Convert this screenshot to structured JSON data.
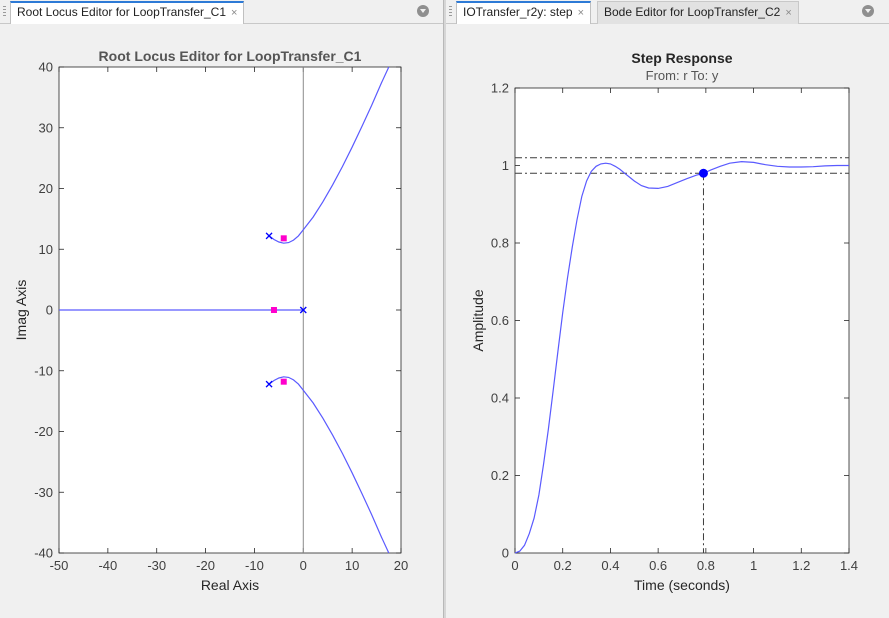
{
  "left_tabs": [
    {
      "label": "Root Locus Editor for LoopTransfer_C1",
      "active": true
    }
  ],
  "right_tabs": [
    {
      "label": "IOTransfer_r2y: step",
      "active": true
    },
    {
      "label": "Bode Editor for LoopTransfer_C2",
      "active": false
    }
  ],
  "close_glyph": "×",
  "icons": {
    "tab_close": "close-icon",
    "panel_menu": "panel-menu-icon",
    "grip": "drag-handle-icon"
  },
  "colors": {
    "curve": "#5a5aff",
    "closed_loop_pole": "#ff00cc",
    "open_loop_pole": "#0000ff",
    "step_marker": "#0000ff",
    "tab_accent": "#2d7ad6"
  },
  "chart_data": [
    {
      "type": "line",
      "name": "root-locus",
      "title": "Root Locus Editor for LoopTransfer_C1",
      "xlabel": "Real Axis",
      "ylabel": "Imag Axis",
      "xlim": [
        -50,
        20
      ],
      "ylim": [
        -40,
        40
      ],
      "xticks": [
        -50,
        -40,
        -30,
        -20,
        -10,
        0,
        10,
        20
      ],
      "yticks": [
        -40,
        -30,
        -20,
        -10,
        0,
        10,
        20,
        30,
        40
      ],
      "grid": false,
      "branches": [
        {
          "x": [
            -7,
            -6,
            -5,
            -4,
            -3,
            -2,
            -1,
            0,
            2,
            4,
            6,
            8,
            10,
            12,
            14,
            16,
            17.5
          ],
          "y": [
            12.2,
            11.6,
            11.2,
            11.0,
            11.1,
            11.5,
            12.2,
            13.2,
            15.3,
            17.8,
            20.6,
            23.6,
            26.8,
            30.2,
            33.7,
            37.4,
            40
          ]
        },
        {
          "x": [
            -7,
            -6,
            -5,
            -4,
            -3,
            -2,
            -1,
            0,
            2,
            4,
            6,
            8,
            10,
            12,
            14,
            16,
            17.5
          ],
          "y": [
            -12.2,
            -11.6,
            -11.2,
            -11.0,
            -11.1,
            -11.5,
            -12.2,
            -13.2,
            -15.3,
            -17.8,
            -20.6,
            -23.6,
            -26.8,
            -30.2,
            -33.7,
            -37.4,
            -40
          ]
        },
        {
          "x": [
            0,
            -50
          ],
          "y": [
            0,
            0
          ]
        }
      ],
      "open_loop_poles": [
        {
          "x": -7,
          "y": 12.2
        },
        {
          "x": -7,
          "y": -12.2
        },
        {
          "x": 0,
          "y": 0
        }
      ],
      "closed_loop_poles": [
        {
          "x": -4,
          "y": 11.8
        },
        {
          "x": -4,
          "y": -11.8
        },
        {
          "x": -6,
          "y": 0
        }
      ]
    },
    {
      "type": "line",
      "name": "step-response",
      "title": "Step Response",
      "subtitle": "From: r  To: y",
      "xlabel": "Time (seconds)",
      "ylabel": "Amplitude",
      "xlim": [
        0,
        1.4
      ],
      "ylim": [
        0,
        1.2
      ],
      "xticks": [
        0,
        0.2,
        0.4,
        0.6,
        0.8,
        1,
        1.2,
        1.4
      ],
      "yticks": [
        0,
        0.2,
        0.4,
        0.6,
        0.8,
        1,
        1.2
      ],
      "grid": false,
      "series": [
        {
          "x": [
            0,
            0.02,
            0.04,
            0.06,
            0.08,
            0.1,
            0.12,
            0.14,
            0.16,
            0.18,
            0.2,
            0.22,
            0.24,
            0.26,
            0.28,
            0.3,
            0.32,
            0.34,
            0.36,
            0.38,
            0.4,
            0.42,
            0.44,
            0.46,
            0.48,
            0.5,
            0.53,
            0.56,
            0.6,
            0.64,
            0.68,
            0.72,
            0.76,
            0.79,
            0.82,
            0.86,
            0.9,
            0.95,
            1.0,
            1.05,
            1.1,
            1.15,
            1.2,
            1.25,
            1.3,
            1.35,
            1.4
          ],
          "y": [
            0,
            0.005,
            0.02,
            0.05,
            0.09,
            0.15,
            0.23,
            0.32,
            0.42,
            0.52,
            0.62,
            0.71,
            0.79,
            0.86,
            0.92,
            0.96,
            0.985,
            0.998,
            1.004,
            1.006,
            1.004,
            0.998,
            0.99,
            0.98,
            0.97,
            0.96,
            0.948,
            0.942,
            0.941,
            0.946,
            0.956,
            0.966,
            0.975,
            0.98,
            0.988,
            0.998,
            1.006,
            1.01,
            1.008,
            1.002,
            0.998,
            0.996,
            0.996,
            0.997,
            0.999,
            1.0,
            1.0
          ]
        }
      ],
      "settling_band": [
        0.98,
        1.02
      ],
      "settling_time": {
        "x": 0.79,
        "y": 0.98
      }
    }
  ]
}
